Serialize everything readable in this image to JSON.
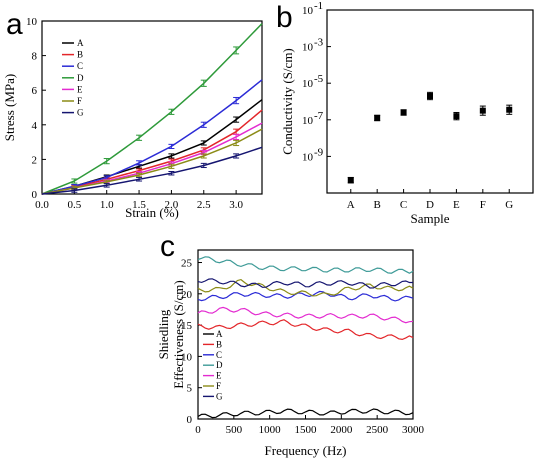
{
  "chart_data": [
    {
      "panel": "a",
      "type": "line",
      "xlabel": "Strain (%)",
      "ylabel": "Stress (MPa)",
      "xlim": [
        0.0,
        3.4
      ],
      "ylim": [
        0,
        10
      ],
      "xticks": [
        0.0,
        0.5,
        1.0,
        1.5,
        2.0,
        2.5,
        3.0
      ],
      "xtick_labels": [
        "0.0",
        "0.5",
        "1.0",
        "1.5",
        "2.0",
        "2.5",
        "3.0"
      ],
      "yticks": [
        0,
        2,
        4,
        6,
        8,
        10
      ],
      "ytick_labels": [
        "0",
        "2",
        "4",
        "6",
        "8",
        "10"
      ],
      "legend_position": "top-left",
      "series": [
        {
          "name": "A",
          "color": "#000000",
          "x": [
            0,
            0.5,
            1.0,
            1.5,
            2.0,
            2.5,
            3.0,
            3.4
          ],
          "y": [
            0,
            0.45,
            1.0,
            1.6,
            2.2,
            2.95,
            4.3,
            5.45
          ],
          "err": [
            0,
            0.1,
            0.1,
            0.1,
            0.12,
            0.12,
            0.15,
            0
          ]
        },
        {
          "name": "B",
          "color": "#e3262a",
          "x": [
            0,
            0.5,
            1.0,
            1.5,
            2.0,
            2.5,
            3.0,
            3.4
          ],
          "y": [
            0,
            0.4,
            0.85,
            1.35,
            1.9,
            2.55,
            3.6,
            4.85
          ],
          "err": [
            0,
            0.1,
            0.1,
            0.1,
            0.12,
            0.12,
            0.15,
            0
          ]
        },
        {
          "name": "C",
          "color": "#2b2bd6",
          "x": [
            0,
            0.5,
            1.0,
            1.5,
            2.0,
            2.5,
            3.0,
            3.4
          ],
          "y": [
            0,
            0.45,
            0.95,
            1.8,
            2.75,
            4.0,
            5.4,
            6.6
          ],
          "err": [
            0,
            0.1,
            0.1,
            0.12,
            0.12,
            0.15,
            0.18,
            0
          ]
        },
        {
          "name": "D",
          "color": "#2e9a3a",
          "x": [
            0,
            0.5,
            1.0,
            1.5,
            2.0,
            2.5,
            3.0,
            3.4
          ],
          "y": [
            0,
            0.75,
            1.9,
            3.25,
            4.75,
            6.4,
            8.3,
            9.85
          ],
          "err": [
            0,
            0.12,
            0.15,
            0.15,
            0.15,
            0.18,
            0.2,
            0
          ]
        },
        {
          "name": "E",
          "color": "#e32bd0",
          "x": [
            0,
            0.5,
            1.0,
            1.5,
            2.0,
            2.5,
            3.0,
            3.4
          ],
          "y": [
            0,
            0.35,
            0.75,
            1.2,
            1.75,
            2.4,
            3.3,
            4.1
          ],
          "err": [
            0,
            0.1,
            0.1,
            0.1,
            0.12,
            0.12,
            0.15,
            0
          ]
        },
        {
          "name": "F",
          "color": "#8b8b16",
          "x": [
            0,
            0.5,
            1.0,
            1.5,
            2.0,
            2.5,
            3.0,
            3.4
          ],
          "y": [
            0,
            0.35,
            0.7,
            1.1,
            1.6,
            2.2,
            2.95,
            3.75
          ],
          "err": [
            0,
            0.1,
            0.1,
            0.1,
            0.12,
            0.12,
            0.15,
            0
          ]
        },
        {
          "name": "G",
          "color": "#151570",
          "x": [
            0,
            0.5,
            1.0,
            1.5,
            2.0,
            2.5,
            3.0,
            3.4
          ],
          "y": [
            0,
            0.2,
            0.5,
            0.85,
            1.2,
            1.65,
            2.2,
            2.7
          ],
          "err": [
            0,
            0.1,
            0.1,
            0.1,
            0.1,
            0.12,
            0.12,
            0
          ]
        }
      ]
    },
    {
      "panel": "b",
      "type": "scatter",
      "xlabel": "Sample",
      "ylabel": "Conductivity (S/cm)",
      "categories": [
        "A",
        "B",
        "C",
        "D",
        "E",
        "F",
        "G"
      ],
      "yscale": "log",
      "ylim_exp": [
        -11,
        -1
      ],
      "ytick_exps": [
        -1,
        -3,
        -5,
        -7,
        -9
      ],
      "ytick_labels": [
        "10",
        "10",
        "10",
        "10",
        "10"
      ],
      "ytick_superscripts": [
        "-1",
        "-3",
        "-5",
        "-7",
        "-9"
      ],
      "series": [
        {
          "name": "",
          "color": "#000000",
          "values_exp": [
            -10.3,
            -6.9,
            -6.6,
            -5.7,
            -6.8,
            -6.5,
            -6.45
          ],
          "err_exp": [
            0.15,
            0.15,
            0.15,
            0.2,
            0.2,
            0.25,
            0.25
          ]
        }
      ]
    },
    {
      "panel": "c",
      "type": "line",
      "xlabel": "Frequency (Hz)",
      "ylabel": [
        "Shiedling",
        "Effectiveness (S/cm)"
      ],
      "xlim": [
        0,
        3000
      ],
      "ylim": [
        0,
        27
      ],
      "xticks": [
        0,
        500,
        1000,
        1500,
        2000,
        2500,
        3000
      ],
      "xtick_labels": [
        "0",
        "500",
        "1000",
        "1500",
        "2000",
        "2500",
        "3000"
      ],
      "yticks": [
        0,
        5,
        10,
        15,
        20,
        25
      ],
      "ytick_labels": [
        "0",
        "5",
        "10",
        "15",
        "20",
        "25"
      ],
      "legend_position": "bottom-left",
      "series": [
        {
          "name": "A",
          "color": "#000000",
          "x": [
            0,
            300,
            600,
            900,
            1200,
            1500,
            1800,
            2100,
            2400,
            2700,
            3000
          ],
          "y": [
            0.4,
            0.6,
            0.9,
            1.0,
            1.3,
            1.1,
            0.9,
            1.2,
            1.3,
            1.1,
            1.0
          ]
        },
        {
          "name": "B",
          "color": "#e3262a",
          "x": [
            0,
            300,
            600,
            900,
            1200,
            1500,
            1800,
            2100,
            2400,
            2700,
            3000
          ],
          "y": [
            14.8,
            14.6,
            15.0,
            15.3,
            15.5,
            14.8,
            14.2,
            14.0,
            13.3,
            13.1,
            13.0
          ]
        },
        {
          "name": "C",
          "color": "#2b2bd6",
          "x": [
            0,
            300,
            600,
            900,
            1200,
            1500,
            1800,
            2100,
            2400,
            2700,
            3000
          ],
          "y": [
            19.2,
            19.5,
            20.0,
            19.8,
            19.6,
            19.9,
            20.1,
            19.3,
            19.8,
            19.2,
            19.3
          ]
        },
        {
          "name": "D",
          "color": "#3f9b98",
          "x": [
            0,
            300,
            600,
            900,
            1200,
            1500,
            1800,
            2100,
            2400,
            2700,
            3000
          ],
          "y": [
            25.8,
            25.3,
            24.7,
            24.2,
            24.0,
            24.0,
            23.8,
            23.8,
            23.9,
            23.6,
            23.6
          ]
        },
        {
          "name": "E",
          "color": "#e32bd0",
          "x": [
            0,
            300,
            600,
            900,
            1200,
            1500,
            1800,
            2100,
            2400,
            2700,
            3000
          ],
          "y": [
            16.8,
            17.5,
            17.4,
            16.8,
            16.6,
            16.4,
            16.5,
            16.4,
            16.5,
            16.0,
            15.6
          ]
        },
        {
          "name": "F",
          "color": "#8b8b16",
          "x": [
            0,
            300,
            600,
            900,
            1200,
            1500,
            1800,
            2100,
            2400,
            2700,
            3000
          ],
          "y": [
            20.6,
            20.7,
            22.0,
            21.2,
            20.3,
            20.1,
            19.8,
            20.8,
            21.3,
            20.8,
            20.9
          ]
        },
        {
          "name": "G",
          "color": "#151570",
          "x": [
            0,
            300,
            600,
            900,
            1200,
            1500,
            1800,
            2100,
            2400,
            2700,
            3000
          ],
          "y": [
            22.2,
            22.0,
            21.5,
            21.3,
            21.8,
            21.4,
            21.7,
            21.8,
            21.2,
            21.6,
            21.8
          ]
        }
      ]
    }
  ]
}
